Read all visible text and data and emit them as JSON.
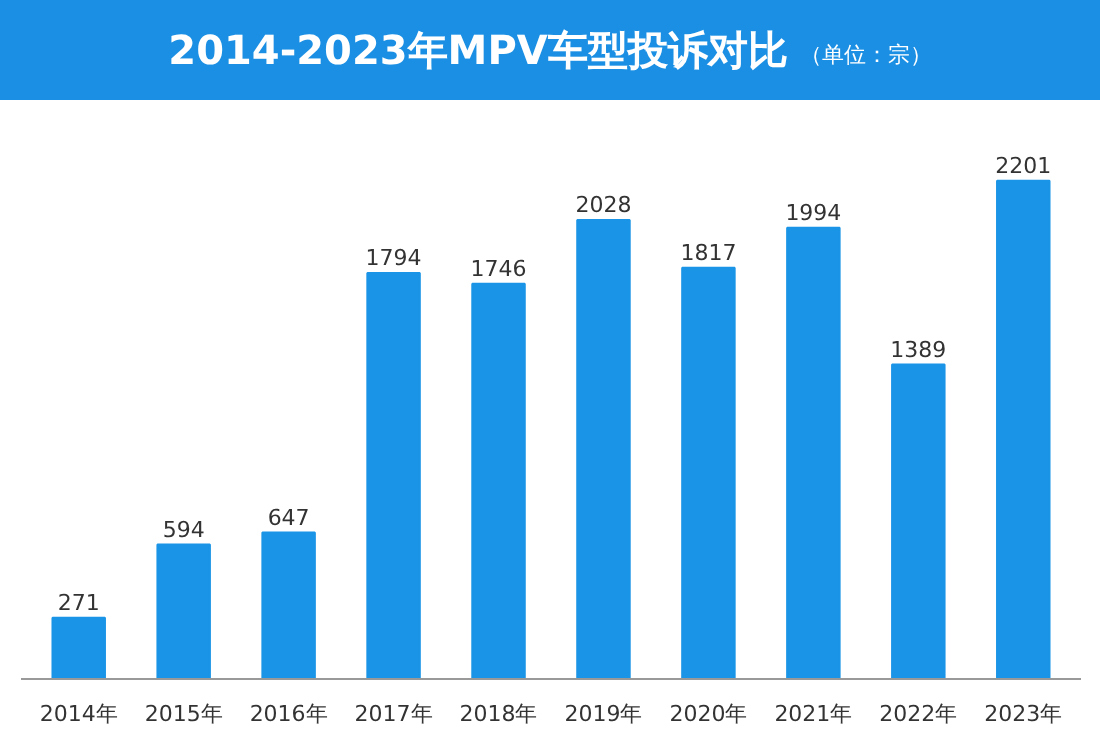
{
  "chart_data": {
    "type": "bar",
    "title": "2014-2023年MPV车型投诉对比",
    "subtitle": "（单位：宗）",
    "categories": [
      "2014年",
      "2015年",
      "2016年",
      "2017年",
      "2018年",
      "2019年",
      "2020年",
      "2021年",
      "2022年",
      "2023年"
    ],
    "values": [
      271,
      594,
      647,
      1794,
      1746,
      2028,
      1817,
      1994,
      1389,
      2201
    ],
    "color": "#1a94e6",
    "data_labels": true,
    "grid": false
  }
}
